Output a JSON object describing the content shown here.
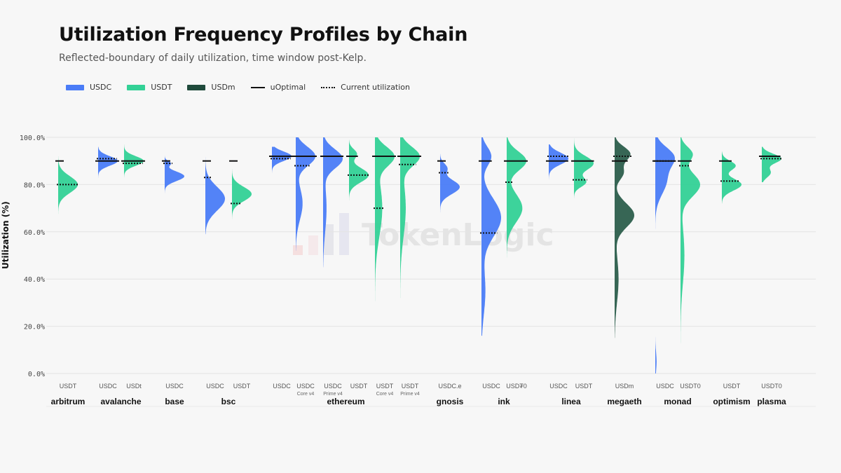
{
  "title": "Utilization Frequency Profiles by Chain",
  "subtitle": "Reflected-boundary of daily utilization, time window post-Kelp.",
  "legend": [
    {
      "label": "USDC",
      "kind": "swatch",
      "color": "#4a7cf7"
    },
    {
      "label": "USDT",
      "kind": "swatch",
      "color": "#33d196"
    },
    {
      "label": "USDm",
      "kind": "swatch",
      "color": "#1f4a3b"
    },
    {
      "label": "uOptimal",
      "kind": "line",
      "color": "#111111"
    },
    {
      "label": "Current utilization",
      "kind": "dotted",
      "color": "#111111"
    }
  ],
  "watermark": "TokenLogic",
  "chart_data": {
    "type": "violin",
    "ylabel": "Utilization (%)",
    "ylim": [
      0,
      100
    ],
    "yticks": [
      "0.0%",
      "20.0%",
      "40.0%",
      "60.0%",
      "80.0%",
      "100.0%"
    ],
    "grid": true,
    "legend_position": "top-left",
    "groups": [
      {
        "chain": "arbitrum",
        "series": [
          {
            "label": "USDT",
            "sub": "",
            "asset": "USDT",
            "color": "#33d196",
            "min": 67,
            "max": 92,
            "peaks": [
              [
                80,
                3.5,
                1.0
              ]
            ],
            "uopt": 90,
            "current": 80
          }
        ]
      },
      {
        "chain": "avalanche",
        "series": [
          {
            "label": "USDC",
            "sub": "",
            "asset": "USDC",
            "color": "#4a7cf7",
            "min": 80,
            "max": 96,
            "peaks": [
              [
                90,
                2.0,
                1.0
              ]
            ],
            "uopt": 90,
            "current": 91
          },
          {
            "label": "USDt",
            "sub": "",
            "asset": "USDT",
            "color": "#33d196",
            "min": 83,
            "max": 99,
            "peaks": [
              [
                90,
                2.0,
                1.0
              ]
            ],
            "uopt": 90,
            "current": 89
          }
        ]
      },
      {
        "chain": "base",
        "series": [
          {
            "label": "USDC",
            "sub": "",
            "asset": "USDC",
            "color": "#4a7cf7",
            "min": 76,
            "max": 93,
            "peaks": [
              [
                83.5,
                2.0,
                1.0
              ],
              [
                89,
                1.0,
                0.3
              ]
            ],
            "uopt": 90,
            "current": 89
          }
        ]
      },
      {
        "chain": "bsc",
        "series": [
          {
            "label": "USDC",
            "sub": "",
            "asset": "USDC",
            "color": "#4a7cf7",
            "min": 59,
            "max": 98,
            "peaks": [
              [
                74,
                5.0,
                1.0
              ]
            ],
            "uopt": 90,
            "current": 83
          },
          {
            "label": "USDT",
            "sub": "",
            "asset": "USDT",
            "color": "#33d196",
            "min": 64,
            "max": 90,
            "peaks": [
              [
                76,
                3.0,
                1.0
              ]
            ],
            "uopt": 90,
            "current": 72
          }
        ]
      },
      {
        "chain": "ethereum",
        "series": [
          {
            "label": "USDC",
            "sub": "",
            "asset": "USDC",
            "color": "#4a7cf7",
            "min": 85,
            "max": 96,
            "peaks": [
              [
                92,
                2.0,
                1.0
              ]
            ],
            "uopt": 92,
            "current": 91
          },
          {
            "label": "USDC",
            "sub": "Core v4",
            "asset": "USDC",
            "color": "#4a7cf7",
            "min": 52,
            "max": 100,
            "peaks": [
              [
                92,
                4.0,
                1.0
              ],
              [
                72,
                7.0,
                0.35
              ]
            ],
            "uopt": 92,
            "current": 88
          },
          {
            "label": "USDC",
            "sub": "Prime v4",
            "asset": "USDC",
            "color": "#4a7cf7",
            "min": 45,
            "max": 100,
            "peaks": [
              [
                91,
                4.0,
                1.0
              ],
              [
                70,
                10.0,
                0.18
              ]
            ],
            "uopt": 92,
            "current": 92
          },
          {
            "label": "USDT",
            "sub": "",
            "asset": "USDT",
            "color": "#33d196",
            "min": 68,
            "max": 99,
            "peaks": [
              [
                84,
                3.0,
                1.0
              ],
              [
                93,
                2.0,
                0.4
              ]
            ],
            "uopt": 92,
            "current": 84
          },
          {
            "label": "USDT",
            "sub": "Core v4",
            "asset": "USDT",
            "color": "#33d196",
            "min": 24,
            "max": 100,
            "peaks": [
              [
                92,
                4.0,
                1.0
              ],
              [
                70,
                12.0,
                0.4
              ]
            ],
            "uopt": 92,
            "current": 70
          },
          {
            "label": "USDT",
            "sub": "Prime v4",
            "asset": "USDT",
            "color": "#33d196",
            "min": 32,
            "max": 100,
            "peaks": [
              [
                92,
                4.0,
                1.0
              ],
              [
                70,
                12.0,
                0.3
              ]
            ],
            "uopt": 92,
            "current": 88.5
          }
        ]
      },
      {
        "chain": "gnosis",
        "series": [
          {
            "label": "USDC.e",
            "sub": "",
            "asset": "USDC",
            "color": "#4a7cf7",
            "min": 64,
            "max": 93,
            "peaks": [
              [
                79,
                3.0,
                1.0
              ],
              [
                87,
                2.0,
                0.35
              ]
            ],
            "uopt": 90,
            "current": 85
          }
        ]
      },
      {
        "chain": "ink",
        "series": [
          {
            "label": "USDC",
            "sub": "",
            "asset": "USDC",
            "color": "#4a7cf7",
            "min": 16,
            "max": 100,
            "peaks": [
              [
                66,
                8.0,
                1.0
              ],
              [
                92,
                4.0,
                0.5
              ],
              [
                35,
                10.0,
                0.2
              ]
            ],
            "uopt": 90,
            "current": 59.5
          },
          {
            "label": "USD₮0",
            "sub": "",
            "asset": "USDT",
            "color": "#33d196",
            "min": 48,
            "max": 100,
            "peaks": [
              [
                90,
                4.0,
                1.0
              ],
              [
                70,
                6.0,
                0.8
              ]
            ],
            "uopt": 90,
            "current": 81
          }
        ]
      },
      {
        "chain": "linea",
        "series": [
          {
            "label": "USDC",
            "sub": "",
            "asset": "USDC",
            "color": "#4a7cf7",
            "min": 81,
            "max": 97,
            "peaks": [
              [
                91,
                2.5,
                1.0
              ]
            ],
            "uopt": 90,
            "current": 92
          },
          {
            "label": "USDT",
            "sub": "",
            "asset": "USDT",
            "color": "#33d196",
            "min": 72,
            "max": 100,
            "peaks": [
              [
                89,
                3.0,
                1.0
              ],
              [
                81,
                2.0,
                0.6
              ]
            ],
            "uopt": 90,
            "current": 82
          }
        ]
      },
      {
        "chain": "megaeth",
        "series": [
          {
            "label": "USDm",
            "sub": "",
            "asset": "USDm",
            "color": "#2c5e4c",
            "min": 15,
            "max": 100,
            "peaks": [
              [
                67,
                5.0,
                1.0
              ],
              [
                93,
                3.0,
                0.8
              ],
              [
                85,
                3.0,
                0.45
              ],
              [
                40,
                10.0,
                0.2
              ]
            ],
            "uopt": 90,
            "current": 92
          }
        ]
      },
      {
        "chain": "monad",
        "series": [
          {
            "label": "USDC",
            "sub": "",
            "asset": "USDC",
            "color": "#4a7cf7",
            "min": 0,
            "max": 100,
            "peaks": [
              [
                92,
                4.0,
                1.0
              ],
              [
                82,
                6.0,
                0.7
              ],
              [
                5,
                4.0,
                0.08
              ]
            ],
            "uopt": 90,
            "current": 90
          },
          {
            "label": "USDT0",
            "sub": "",
            "asset": "USDT",
            "color": "#33d196",
            "min": 0,
            "max": 100,
            "peaks": [
              [
                80,
                5.0,
                1.0
              ],
              [
                93,
                3.0,
                0.6
              ],
              [
                50,
                12.0,
                0.2
              ]
            ],
            "uopt": 90,
            "current": 88
          }
        ]
      },
      {
        "chain": "optimism",
        "series": [
          {
            "label": "USDT",
            "sub": "",
            "asset": "USDT",
            "color": "#33d196",
            "min": 72,
            "max": 94,
            "peaks": [
              [
                80,
                2.5,
                1.0
              ],
              [
                88,
                2.0,
                0.7
              ]
            ],
            "uopt": 90,
            "current": 81.5
          }
        ]
      },
      {
        "chain": "plasma",
        "series": [
          {
            "label": "USDT0",
            "sub": "",
            "asset": "USDT",
            "color": "#33d196",
            "min": 81,
            "max": 96,
            "peaks": [
              [
                91,
                2.0,
                1.0
              ],
              [
                85,
                2.0,
                0.45
              ]
            ],
            "uopt": 92,
            "current": 91
          }
        ]
      }
    ]
  }
}
